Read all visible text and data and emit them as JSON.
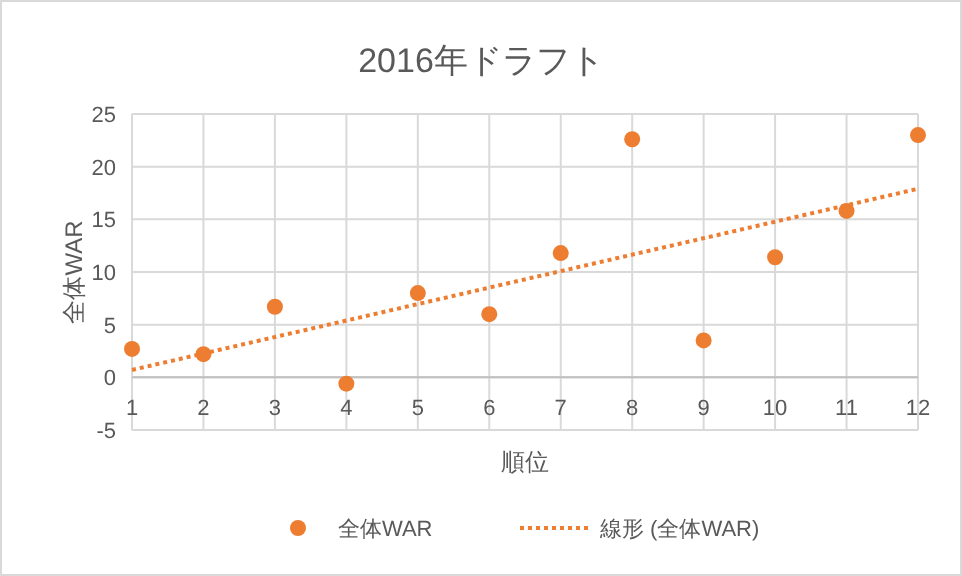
{
  "chart_data": {
    "type": "scatter",
    "title": "2016年ドラフト",
    "xlabel": "順位",
    "ylabel": "全体WAR",
    "xlim": [
      1,
      12
    ],
    "xticks": [
      1,
      2,
      3,
      4,
      5,
      6,
      7,
      8,
      9,
      10,
      11,
      12
    ],
    "ylim": [
      -5,
      25
    ],
    "yticks": [
      -5,
      0,
      5,
      10,
      15,
      20,
      25
    ],
    "grid": true,
    "legend": "bottom",
    "series": [
      {
        "name": "全体WAR",
        "color": "#ed7d31",
        "marker": "circle",
        "x": [
          1,
          2,
          3,
          4,
          5,
          6,
          7,
          8,
          9,
          10,
          11,
          12
        ],
        "values": [
          2.7,
          2.2,
          6.7,
          -0.6,
          8.0,
          6.0,
          11.8,
          22.6,
          3.5,
          11.4,
          15.8,
          23.0
        ]
      },
      {
        "name": "線形 (全体WAR)",
        "type": "line",
        "color": "#ed7d31",
        "marker": "none",
        "line_style": "dotted",
        "x": [
          1,
          12
        ],
        "values": [
          0.7,
          17.9
        ]
      }
    ]
  }
}
